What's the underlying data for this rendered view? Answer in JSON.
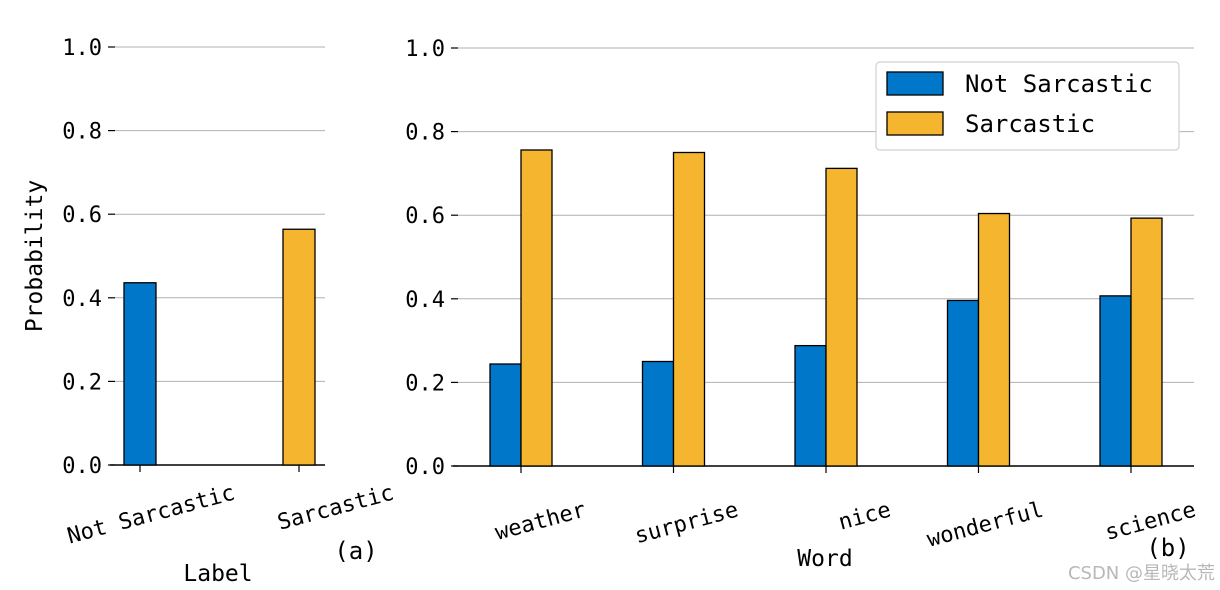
{
  "colors": {
    "not_sarcastic": "#0077c8",
    "sarcastic": "#f5b52e",
    "grid": "#b0b0b0"
  },
  "watermark": "CSDN @星晓太荒",
  "chart_data": [
    {
      "type": "bar",
      "panel": "(a)",
      "categories": [
        "Not Sarcastic",
        "Sarcastic"
      ],
      "values": [
        0.436,
        0.564
      ],
      "bar_colors": [
        "not_sarcastic",
        "sarcastic"
      ],
      "xlabel": "Label",
      "ylabel": "Probability",
      "ylim": [
        0,
        1.0
      ],
      "yticks": [
        "0.0",
        "0.2",
        "0.4",
        "0.6",
        "0.8",
        "1.0"
      ],
      "grid": "horizontal"
    },
    {
      "type": "bar",
      "panel": "(b)",
      "categories": [
        "weather",
        "surprise",
        "nice",
        "wonderful",
        "science"
      ],
      "series": [
        {
          "name": "Not Sarcastic",
          "color": "not_sarcastic",
          "values": [
            0.244,
            0.25,
            0.288,
            0.396,
            0.407
          ]
        },
        {
          "name": "Sarcastic",
          "color": "sarcastic",
          "values": [
            0.756,
            0.75,
            0.712,
            0.604,
            0.593
          ]
        }
      ],
      "xlabel": "Word",
      "ylabel": "",
      "ylim": [
        0,
        1.0
      ],
      "yticks": [
        "0.0",
        "0.2",
        "0.4",
        "0.6",
        "0.8",
        "1.0"
      ],
      "grid": "horizontal",
      "legend": "top-right"
    }
  ]
}
